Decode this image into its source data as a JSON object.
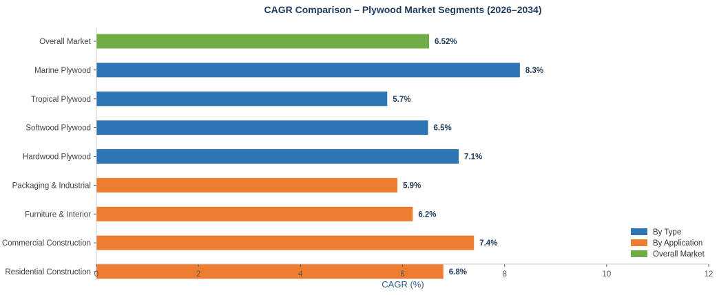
{
  "chart_data": {
    "type": "bar",
    "orientation": "horizontal",
    "title": "CAGR Comparison – Plywood Market Segments (2026–2034)",
    "xlabel": "CAGR (%)",
    "ylabel": "",
    "xlim": [
      0,
      12
    ],
    "xticks": [
      0,
      2,
      4,
      6,
      8,
      10,
      12
    ],
    "grid": false,
    "legend_position": "bottom-right",
    "categories": [
      "Overall Market",
      "Marine Plywood",
      "Tropical Plywood",
      "Softwood Plywood",
      "Hardwood Plywood",
      "Packaging & Industrial",
      "Furniture & Interior",
      "Commercial Construction",
      "Residential Construction"
    ],
    "values": [
      6.52,
      8.3,
      5.7,
      6.5,
      7.1,
      5.9,
      6.2,
      7.4,
      6.8
    ],
    "value_labels": [
      "6.52%",
      "8.3%",
      "5.7%",
      "6.5%",
      "7.1%",
      "5.9%",
      "6.2%",
      "7.4%",
      "6.8%"
    ],
    "groups": [
      "Overall Market",
      "By Type",
      "By Type",
      "By Type",
      "By Type",
      "By Application",
      "By Application",
      "By Application",
      "By Application"
    ],
    "legend": [
      {
        "name": "By Type",
        "color": "#2e75b6"
      },
      {
        "name": "By Application",
        "color": "#ed7d31"
      },
      {
        "name": "Overall Market",
        "color": "#70ad47"
      }
    ]
  }
}
